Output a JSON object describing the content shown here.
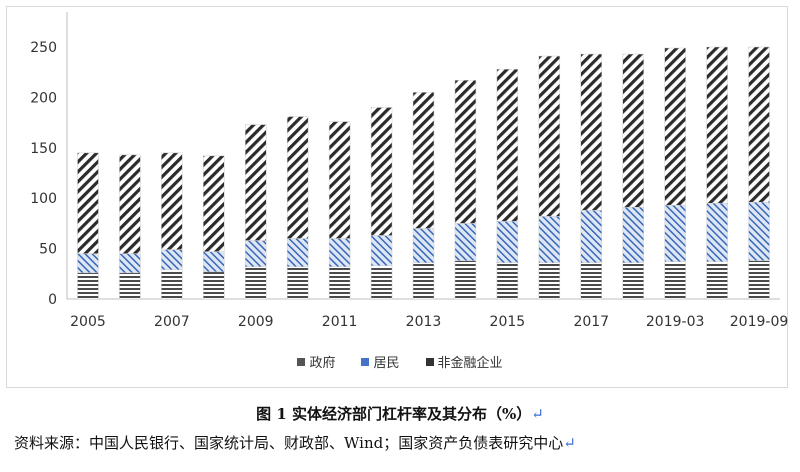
{
  "chart_data": {
    "type": "bar",
    "stacked": true,
    "categories": [
      "2005",
      "2006",
      "2007",
      "2008",
      "2009",
      "2010",
      "2011",
      "2012",
      "2013",
      "2014",
      "2015",
      "2016",
      "2017",
      "2018",
      "2019-03",
      "2019-06",
      "2019-09"
    ],
    "x_tick_labels": [
      "2005",
      "2007",
      "2009",
      "2011",
      "2013",
      "2015",
      "2017",
      "2019-03",
      "2019-09"
    ],
    "series": [
      {
        "name": "政府",
        "color": "#555555",
        "pattern": "horizontal-stripes",
        "values": [
          26,
          26,
          29,
          27,
          32,
          32,
          32,
          33,
          36,
          38,
          36,
          36,
          36,
          36,
          37,
          37,
          38
        ]
      },
      {
        "name": "居民",
        "color": "#4472c4",
        "pattern": "diagonal-hatch-blue",
        "values": [
          19,
          19,
          20,
          20,
          26,
          28,
          28,
          30,
          34,
          37,
          41,
          46,
          52,
          55,
          56,
          58,
          58
        ]
      },
      {
        "name": "非金融企业",
        "color": "#333333",
        "pattern": "diagonal-stripes",
        "values": [
          100,
          98,
          96,
          95,
          115,
          121,
          116,
          127,
          135,
          142,
          151,
          159,
          155,
          152,
          156,
          155,
          154
        ]
      }
    ],
    "ylim": [
      0,
      250
    ],
    "yticks": [
      0,
      50,
      100,
      150,
      200,
      250
    ],
    "grid": false,
    "legend_position": "bottom"
  },
  "legend": [
    {
      "label": "政府",
      "color": "#555555"
    },
    {
      "label": "居民",
      "color": "#4472c4"
    },
    {
      "label": "非金融企业",
      "color": "#333333"
    }
  ],
  "caption": "图 1  实体经济部门杠杆率及其分布（%）",
  "source": "资料来源：中国人民银行、国家统计局、财政部、Wind；国家资产负债表研究中心",
  "return_mark": "↵"
}
